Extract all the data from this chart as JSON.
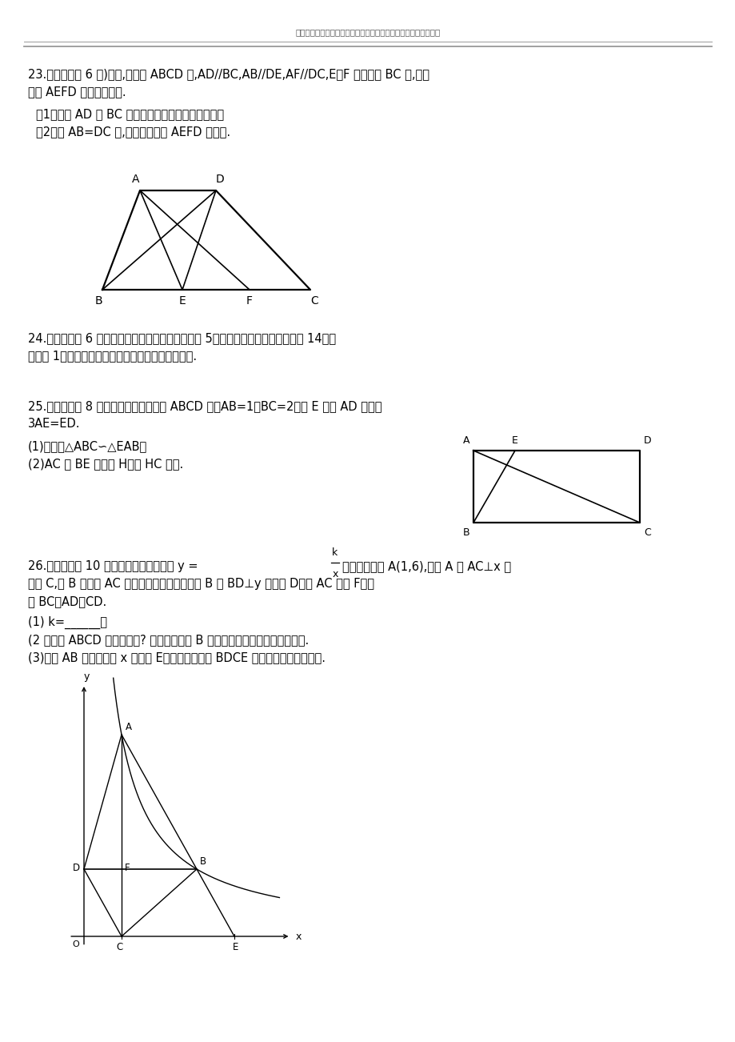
{
  "background_color": "#ffffff",
  "header_text": "最新学习考试资料试卷件及海量高中、初中教学课尽在金锄头文库",
  "q23_l1": "23.（本题满分 6 分)如图,在梯形 ABCD 中,AD//BC,AB//DE,AF//DC,E、F 两点在边 BC 上,且四",
  "q23_l2": "边形 AEFD 是平行四边形.",
  "q23_s1": "（1）判断 AD 与 BC 有什么数量关系？并说明理由；",
  "q23_s2": "（2）当 AB=DC 时,求证：四边形 AEFD 是矩形.",
  "q24_l1": "24.（本题满分 6 分）一个分数的分母比它的分子大 5，如果将这个分数的分子加上 14，分",
  "q24_l2": "母减去 1，所得分数正好是原分数的倒数，求原分数.",
  "q25_l1": "25.（本题满分 8 分）如图，已知在矩形 ABCD 中，AB=1，BC=2，点 E 在边 AD 上，且",
  "q25_l2": "3AE=ED.",
  "q25_s1": "(1)求证：△ABC∽△EAB；",
  "q25_s2": "(2)AC 与 BE 交于点 H，求 HC 的长.",
  "q26_l1": "26.（本题满分 10 分）如图，反比例函数 y =",
  "q26_l1b": "的图像经过点 A(1,6),过点 A 作 AC⊥x 轴",
  "q26_l2": "于点 C,点 B 在直线 AC 右侧的函数图像上，过点 B 作 BD⊥y 轴于点 D，交 AC 于点 F，连",
  "q26_l3": "接 BC、AD、CD.",
  "q26_s1": "(1) k=______；",
  "q26_s2": "(2 四边形 ABCD 能否为菱形? 若可以，求出 B 点的坐标，若不可以，说明理由.",
  "q26_s3": "(3)连接 AB 并延长，交 x 轴于点 E，试判断四边形 BDCE 的形状，并证明你结论."
}
